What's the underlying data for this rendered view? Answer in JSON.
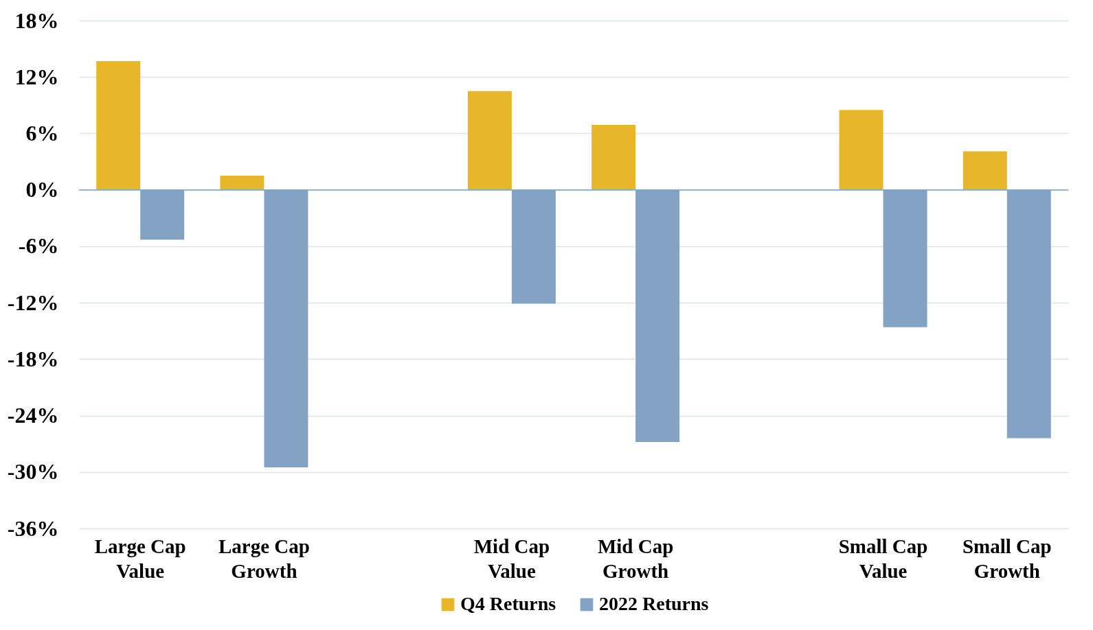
{
  "chart_data": {
    "type": "bar",
    "categories": [
      "Large Cap Value",
      "Large Cap Growth",
      null,
      "Mid Cap Value",
      "Mid Cap Growth",
      null,
      "Small Cap Value",
      "Small Cap Growth"
    ],
    "series": [
      {
        "name": "Q4 Returns",
        "color": "#e8b62a",
        "values": [
          13.7,
          1.5,
          null,
          10.5,
          6.9,
          null,
          8.5,
          4.1
        ]
      },
      {
        "name": "2022 Returns",
        "color": "#84a3c4",
        "values": [
          -5.3,
          -29.5,
          null,
          -12.1,
          -26.8,
          null,
          -14.6,
          -26.4
        ]
      }
    ],
    "ylim": [
      -36,
      18
    ],
    "yticks": [
      {
        "value": -36,
        "label": "-36%"
      },
      {
        "value": -30,
        "label": "-30%"
      },
      {
        "value": -24,
        "label": "-24%"
      },
      {
        "value": -18,
        "label": "-18%"
      },
      {
        "value": -12,
        "label": "-12%"
      },
      {
        "value": -6,
        "label": "-6%"
      },
      {
        "value": 0,
        "label": "0%"
      },
      {
        "value": 6,
        "label": "6%"
      },
      {
        "value": 12,
        "label": "12%"
      },
      {
        "value": 18,
        "label": "18%"
      }
    ],
    "ref_lines": [
      {
        "axis": "y",
        "value": 0,
        "color": "#7ea6c6"
      }
    ],
    "grid": "y",
    "legend": "bottom"
  }
}
